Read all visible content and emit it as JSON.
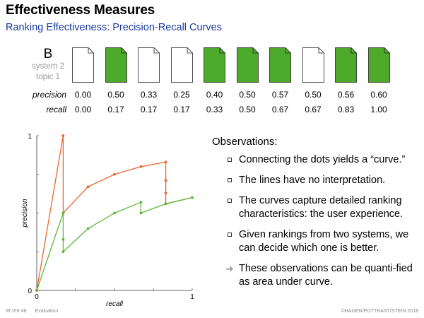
{
  "header": {
    "title": "Effectiveness Measures",
    "subtitle": "Ranking Effectiveness: Precision-Recall Curves"
  },
  "system": {
    "name": "B",
    "line1": "system 2",
    "line2": "topic 1"
  },
  "ranking": {
    "relevant": [
      false,
      true,
      false,
      false,
      true,
      true,
      true,
      false,
      true,
      true
    ],
    "colors": {
      "relevant": "#4daa2b",
      "nonrelevant": "#ffffff"
    }
  },
  "table": {
    "precision_label": "precision",
    "recall_label": "recall",
    "precision": [
      "0.00",
      "0.50",
      "0.33",
      "0.25",
      "0.40",
      "0.50",
      "0.57",
      "0.50",
      "0.56",
      "0.60"
    ],
    "recall": [
      "0.00",
      "0.17",
      "0.17",
      "0.17",
      "0.33",
      "0.50",
      "0.67",
      "0.67",
      "0.83",
      "1.00"
    ]
  },
  "chart_data": {
    "type": "line",
    "xlabel": "recall",
    "ylabel": "precision",
    "xlim": [
      0,
      1
    ],
    "ylim": [
      0,
      1
    ],
    "xticks": [
      "0",
      "1"
    ],
    "yticks": [
      "0",
      "1"
    ],
    "grid": false,
    "series": [
      {
        "color": "#e8672a",
        "points": [
          [
            0,
            0
          ],
          [
            0.17,
            1.0
          ],
          [
            0.17,
            0.5
          ],
          [
            0.33,
            0.67
          ],
          [
            0.5,
            0.75
          ],
          [
            0.67,
            0.8
          ],
          [
            0.83,
            0.83
          ],
          [
            0.83,
            0.71
          ],
          [
            0.83,
            0.63
          ],
          [
            0.83,
            0.56
          ],
          [
            1.0,
            0.6
          ]
        ]
      },
      {
        "color": "#5cb83a",
        "points": [
          [
            0,
            0
          ],
          [
            0.17,
            0.5
          ],
          [
            0.17,
            0.33
          ],
          [
            0.17,
            0.25
          ],
          [
            0.33,
            0.4
          ],
          [
            0.5,
            0.5
          ],
          [
            0.67,
            0.57
          ],
          [
            0.67,
            0.5
          ],
          [
            0.83,
            0.56
          ],
          [
            1.0,
            0.6
          ]
        ]
      }
    ]
  },
  "observations": {
    "title": "Observations:",
    "items": [
      "Connecting the dots yields a “curve.”",
      "The lines have no interpretation.",
      "The curves capture detailed ranking characteristics: the user experience.",
      "Given rankings from two systems, we can decide which one is better."
    ],
    "conclusion": "These observations can be quanti-fied as area under curve."
  },
  "footer": {
    "slide_id": "IR:VIII-46",
    "section": "Evaluation",
    "copyright": "©HAGEN/POTTHAST/STEIN 2018"
  }
}
